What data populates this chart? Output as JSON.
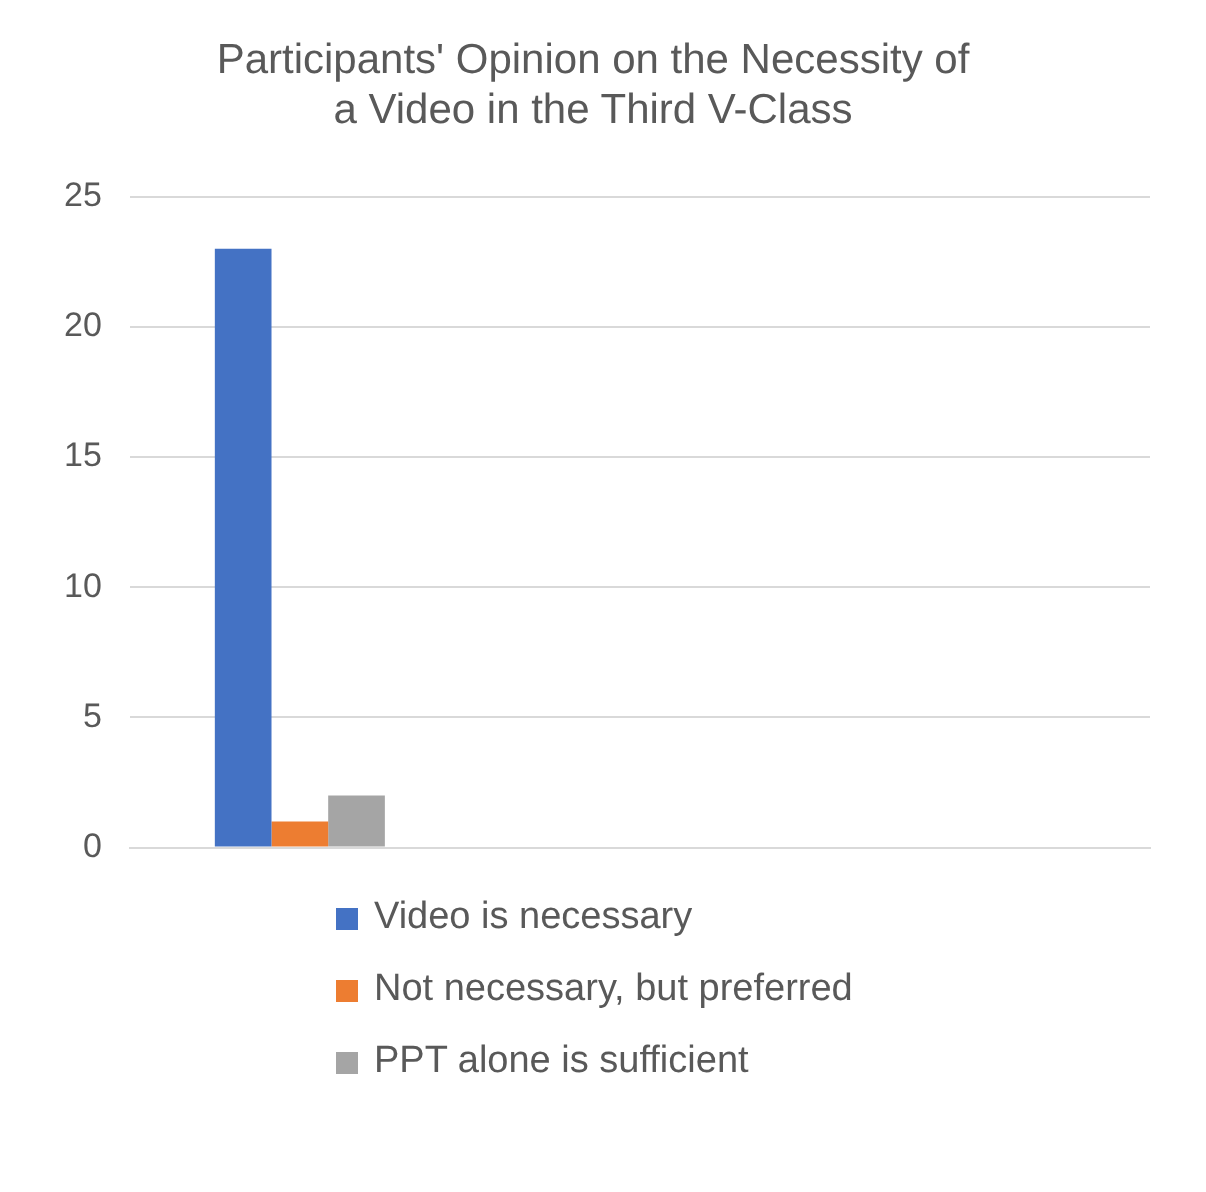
{
  "chart_data": {
    "type": "bar",
    "title": "Participants' Opinion on the Necessity of a Video in the Third V-Class",
    "categories": [
      null,
      null,
      null
    ],
    "series": [
      {
        "name": "Video is necessary",
        "color": "#4472c4",
        "values": [
          23,
          null,
          null
        ]
      },
      {
        "name": "Not necessary, but preferred",
        "color": "#ed7d31",
        "values": [
          1,
          null,
          null
        ]
      },
      {
        "name": "PPT alone is sufficient",
        "color": "#a5a5a5",
        "values": [
          2,
          null,
          null
        ]
      }
    ],
    "ylim": [
      0,
      25
    ],
    "yticks": [
      0,
      5,
      10,
      15,
      20,
      25
    ],
    "grid": "y",
    "legend": "bottom"
  }
}
